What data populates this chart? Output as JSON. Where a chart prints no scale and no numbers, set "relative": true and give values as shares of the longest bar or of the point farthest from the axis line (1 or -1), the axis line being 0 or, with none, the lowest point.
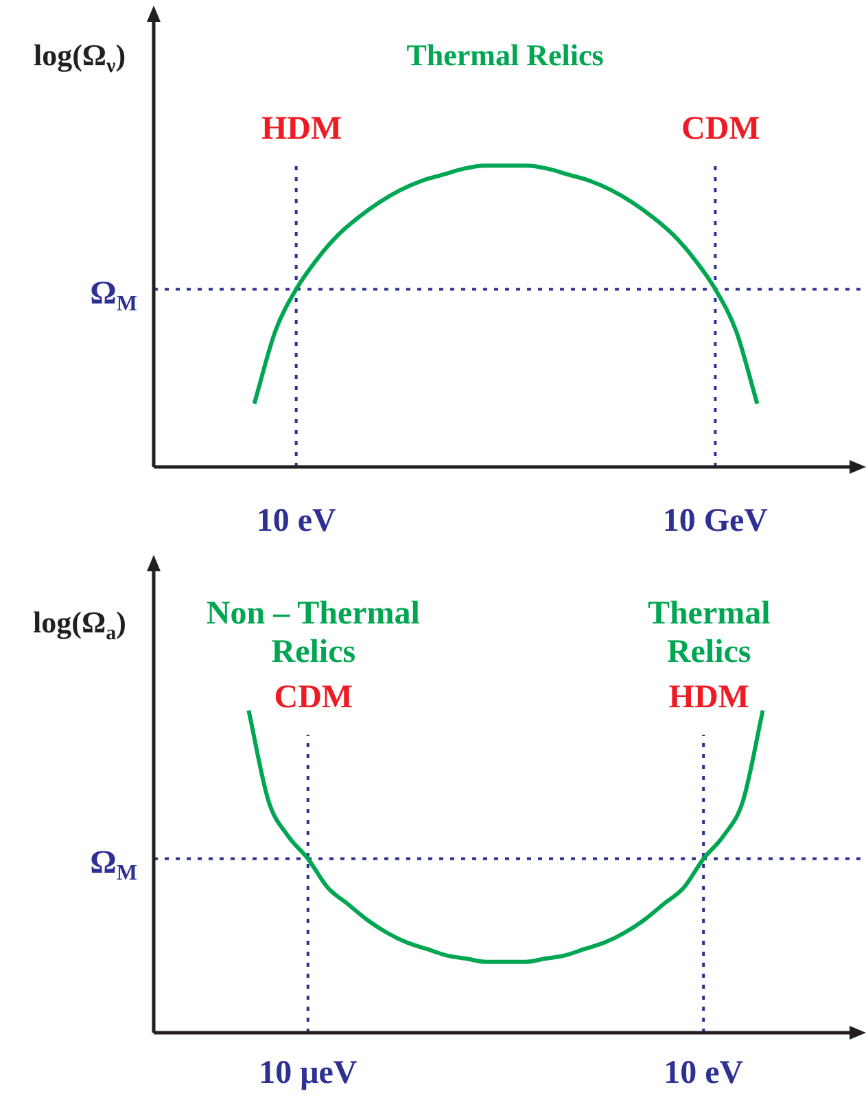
{
  "chart_data": [
    {
      "type": "line",
      "title": "Thermal Relics",
      "ylabel": "log(Ω$_{ν}$)",
      "relative": true,
      "legend": false,
      "grid": false,
      "marker": "none",
      "categories": [
        null,
        null,
        "10 eV",
        null,
        null,
        null,
        null,
        null,
        null,
        null,
        null,
        null,
        null,
        null,
        null,
        null,
        null,
        null,
        null,
        null,
        null,
        null,
        "10 GeV",
        null,
        null
      ],
      "series": [
        {
          "color": "#00a651",
          "values": [
            0.21,
            0.45,
            0.59,
            0.69,
            0.77,
            0.83,
            0.88,
            0.92,
            0.95,
            0.97,
            0.99,
            1.0,
            1.0,
            1.0,
            0.99,
            0.97,
            0.95,
            0.92,
            0.88,
            0.83,
            0.77,
            0.69,
            0.59,
            0.45,
            0.21
          ]
        }
      ],
      "ref_lines": [
        {
          "axis": "x",
          "value": "10 eV",
          "label": "HDM",
          "color": "#2e3192",
          "line_style": "dotted"
        },
        {
          "axis": "x",
          "value": "10 GeV",
          "label": "CDM",
          "color": "#2e3192",
          "line_style": "dotted"
        },
        {
          "axis": "y",
          "value": 0.59,
          "label": "Ω$_{M}$",
          "color": "#2e3192",
          "line_style": "dotted"
        }
      ]
    },
    {
      "type": "line",
      "ylabel": "log(Ω$_{a}$)",
      "relative": true,
      "legend": false,
      "grid": false,
      "marker": "none",
      "categories": [
        null,
        null,
        null,
        "10 μeV",
        null,
        null,
        null,
        null,
        null,
        null,
        null,
        null,
        null,
        null,
        null,
        null,
        null,
        null,
        null,
        null,
        null,
        null,
        null,
        "10 eV",
        null,
        null,
        null
      ],
      "series": [
        {
          "color": "#00a651",
          "values": [
            1.0,
            0.72,
            0.61,
            0.54,
            0.45,
            0.4,
            0.35,
            0.31,
            0.28,
            0.26,
            0.24,
            0.23,
            0.22,
            0.22,
            0.22,
            0.23,
            0.24,
            0.26,
            0.28,
            0.31,
            0.35,
            0.4,
            0.45,
            0.54,
            0.61,
            0.72,
            1.0
          ]
        }
      ],
      "annotations": [
        "Non – Thermal\nRelics",
        "Thermal\nRelics"
      ],
      "ref_lines": [
        {
          "axis": "x",
          "value": "10 μeV",
          "label": "CDM",
          "color": "#2e3192",
          "line_style": "dotted"
        },
        {
          "axis": "x",
          "value": "10 eV",
          "label": "HDM",
          "color": "#2e3192",
          "line_style": "dotted"
        },
        {
          "axis": "y",
          "value": 0.54,
          "label": "Ω$_{M}$",
          "color": "#2e3192",
          "line_style": "dotted"
        }
      ]
    }
  ]
}
